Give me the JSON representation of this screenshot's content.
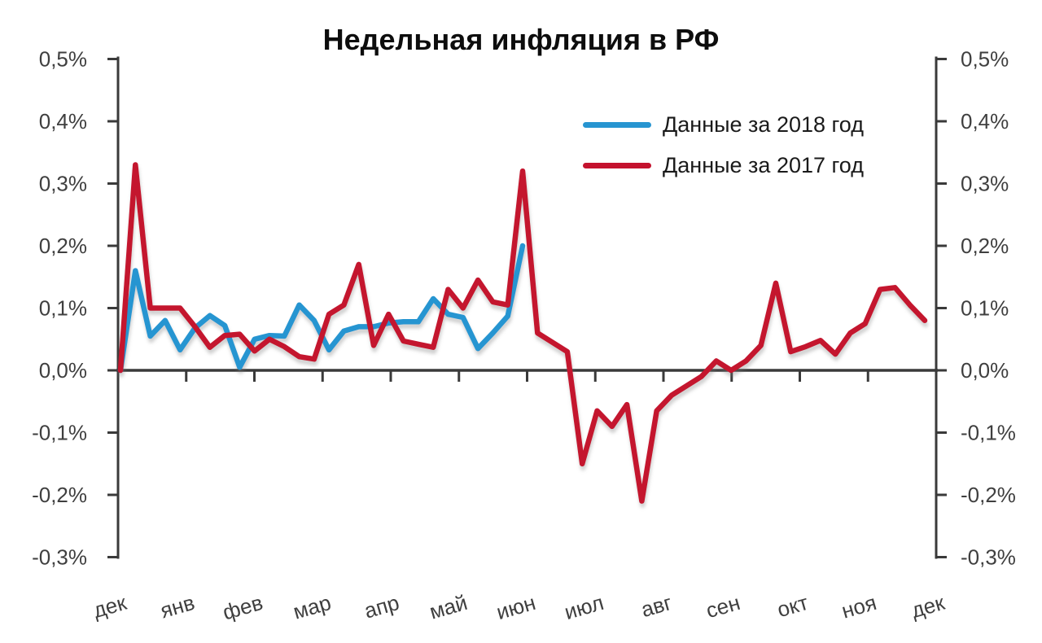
{
  "title": "Недельная инфляция в РФ",
  "legend": {
    "items": [
      {
        "label": "Данные за 2018 год",
        "color": "#2795D1"
      },
      {
        "label": "Данные за 2017 год",
        "color": "#C4122E"
      }
    ],
    "position": "top-right"
  },
  "chart_data": {
    "type": "line",
    "title": "Недельная инфляция в РФ",
    "xlabel": "",
    "ylabel": "",
    "y_unit": "%",
    "ylim": [
      -0.3,
      0.5
    ],
    "y_tick_values": [
      0.5,
      0.4,
      0.3,
      0.2,
      0.1,
      0.0,
      -0.1,
      -0.2,
      -0.3
    ],
    "y_tick_labels": [
      "0,5%",
      "0,4%",
      "0,3%",
      "0,2%",
      "0,1%",
      "0,0%",
      "-0,1%",
      "-0,2%",
      "-0,3%"
    ],
    "x_tick_labels": [
      "дек",
      "янв",
      "фев",
      "мар",
      "апр",
      "май",
      "июн",
      "июл",
      "авг",
      "сен",
      "окт",
      "ноя",
      "дек"
    ],
    "x_resolution": "weekly",
    "grid": false,
    "dual_y_axis": true,
    "axis_crosses_at": 0,
    "legend_position": "top-right",
    "series": [
      {
        "name": "Данные за 2018 год",
        "color": "#2795D1",
        "values": [
          0,
          0.16,
          0.055,
          0.08,
          0.033,
          0.068,
          0.088,
          0.072,
          0.005,
          0.05,
          0.056,
          0.055,
          0.105,
          0.08,
          0.033,
          0.063,
          0.07,
          0.07,
          0.076,
          0.078,
          0.078,
          0.115,
          0.09,
          0.085,
          0.035,
          0.06,
          0.087,
          0.2
        ]
      },
      {
        "name": "Данные за 2017 год",
        "color": "#C4122E",
        "values": [
          0,
          0.33,
          0.1,
          0.1,
          0.1,
          0.07,
          0.037,
          0.056,
          0.058,
          0.031,
          0.05,
          0.038,
          0.022,
          0.018,
          0.09,
          0.105,
          0.17,
          0.04,
          0.09,
          0.047,
          0.042,
          0.037,
          0.13,
          0.1,
          0.145,
          0.11,
          0.105,
          0.32,
          0.06,
          0.045,
          0.03,
          -0.15,
          -0.065,
          -0.09,
          -0.055,
          -0.21,
          -0.065,
          -0.04,
          -0.025,
          -0.01,
          0.015,
          0,
          0.015,
          0.04,
          0.14,
          0.03,
          0.038,
          0.048,
          0.026,
          0.06,
          0.075,
          0.13,
          0.133,
          0.105,
          0.08
        ]
      }
    ]
  }
}
